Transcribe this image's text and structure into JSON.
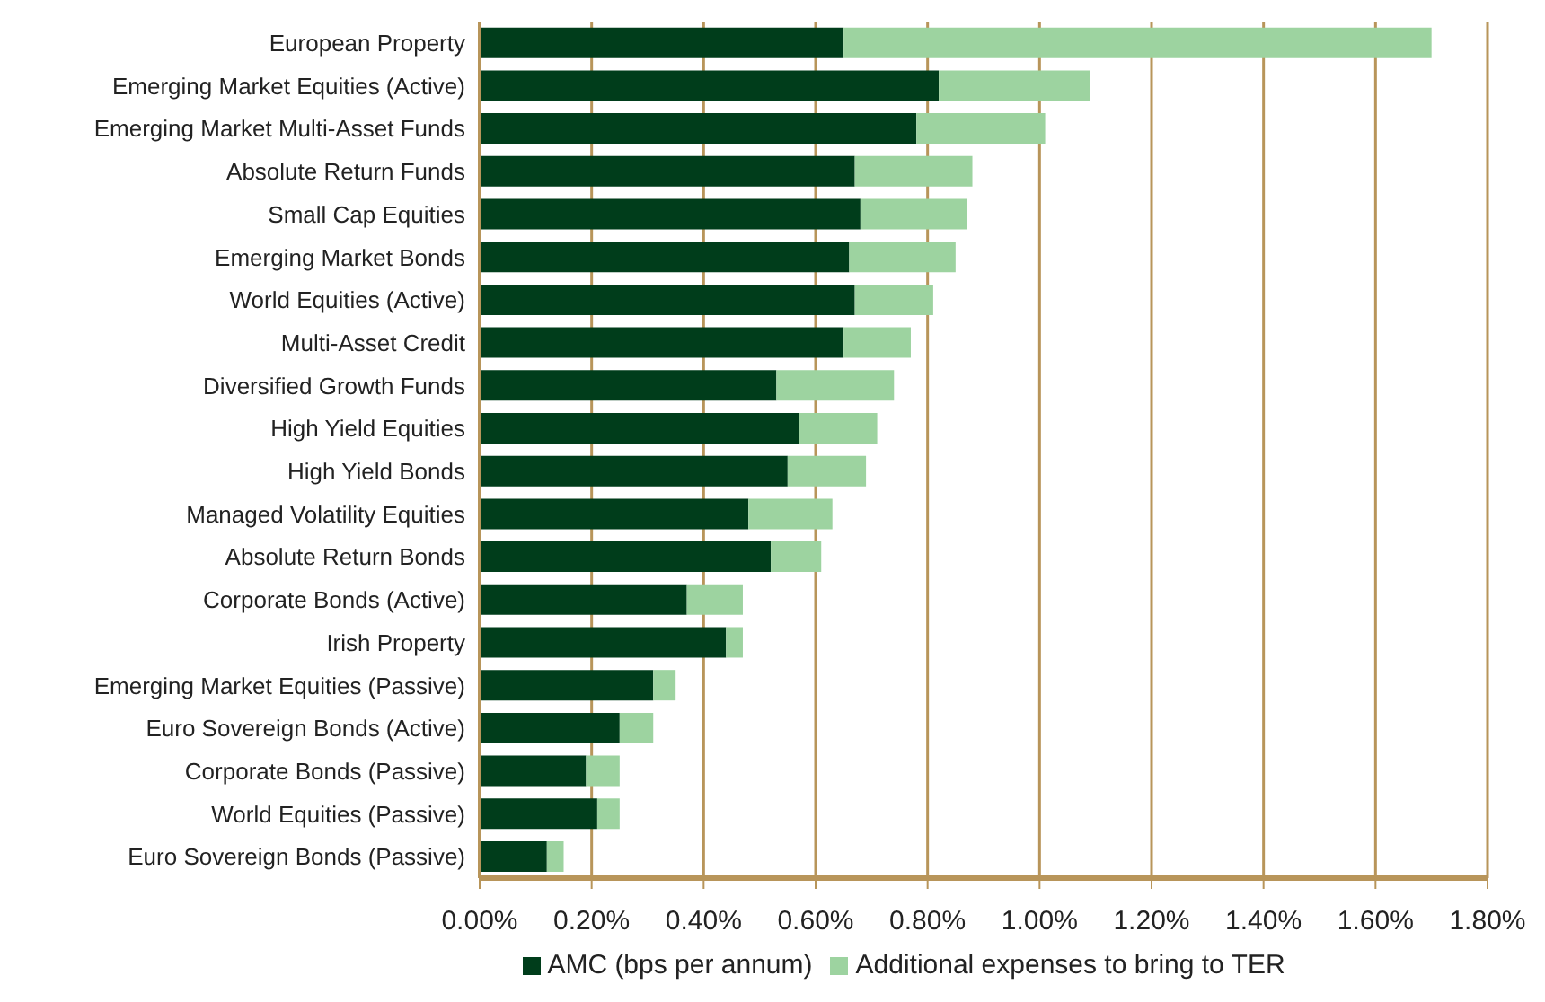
{
  "chart_data": {
    "type": "bar",
    "orientation": "horizontal",
    "stacked": true,
    "categories": [
      "European Property",
      "Emerging Market Equities (Active)",
      "Emerging Market Multi-Asset Funds",
      "Absolute Return Funds",
      "Small Cap Equities",
      "Emerging Market Bonds",
      "World Equities (Active)",
      "Multi-Asset Credit",
      "Diversified Growth Funds",
      "High Yield Equities",
      "High Yield Bonds",
      "Managed Volatility Equities",
      "Absolute Return Bonds",
      "Corporate Bonds (Active)",
      "Irish Property",
      "Emerging Market Equities (Passive)",
      "Euro Sovereign Bonds (Active)",
      "Corporate Bonds (Passive)",
      "World Equities (Passive)",
      "Euro Sovereign Bonds (Passive)"
    ],
    "series": [
      {
        "name": "AMC (bps per annum)",
        "color": "#003d1b",
        "values": [
          0.65,
          0.82,
          0.78,
          0.67,
          0.68,
          0.66,
          0.67,
          0.65,
          0.53,
          0.57,
          0.55,
          0.48,
          0.52,
          0.37,
          0.44,
          0.31,
          0.25,
          0.19,
          0.21,
          0.12
        ]
      },
      {
        "name": "Additional expenses to bring to TER",
        "color": "#9dd3a0",
        "values": [
          1.05,
          0.27,
          0.23,
          0.21,
          0.19,
          0.19,
          0.14,
          0.12,
          0.21,
          0.14,
          0.14,
          0.15,
          0.09,
          0.1,
          0.03,
          0.04,
          0.06,
          0.06,
          0.04,
          0.03
        ]
      }
    ],
    "xlim": [
      0,
      1.8
    ],
    "xticks": [
      {
        "value": 0,
        "label": "0.00%"
      },
      {
        "value": 0.2,
        "label": "0.20%"
      },
      {
        "value": 0.4,
        "label": "0.40%"
      },
      {
        "value": 0.6,
        "label": "0.60%"
      },
      {
        "value": 0.8,
        "label": "0.80%"
      },
      {
        "value": 1.0,
        "label": "1.00%"
      },
      {
        "value": 1.2,
        "label": "1.20%"
      },
      {
        "value": 1.4,
        "label": "1.40%"
      },
      {
        "value": 1.6,
        "label": "1.60%"
      },
      {
        "value": 1.8,
        "label": "1.80%"
      }
    ],
    "grid": "x",
    "legend": "bottom"
  }
}
